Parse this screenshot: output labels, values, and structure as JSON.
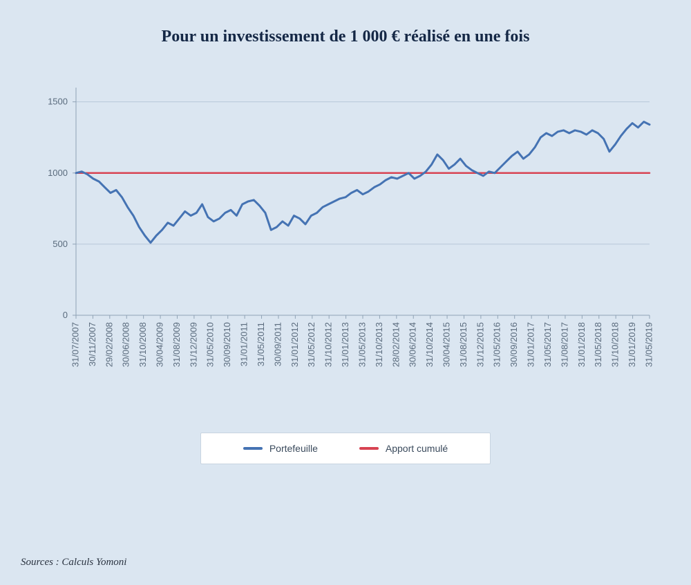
{
  "title": {
    "text": "Pour un investissement de 1 000 € réalisé en une fois",
    "fontsize": 24,
    "color": "#152846"
  },
  "chart": {
    "type": "line",
    "background_color": "#dbe6f1",
    "grid_color": "#b8c7d8",
    "axis_color": "#8fa2b5",
    "ylim": [
      0,
      1600
    ],
    "yticks": [
      0,
      500,
      1000,
      1500
    ],
    "xlabels": [
      "31/07/2007",
      "30/11/2007",
      "29/02/2008",
      "30/06/2008",
      "31/10/2008",
      "30/04/2009",
      "31/08/2009",
      "31/12/2009",
      "31/05/2010",
      "30/09/2010",
      "31/01/2011",
      "31/05/2011",
      "30/09/2011",
      "31/01/2012",
      "31/05/2012",
      "31/10/2012",
      "31/01/2013",
      "31/05/2013",
      "31/10/2013",
      "28/02/2014",
      "30/06/2014",
      "31/10/2014",
      "30/04/2015",
      "31/08/2015",
      "31/12/2015",
      "31/05/2016",
      "30/09/2016",
      "31/01/2017",
      "31/05/2017",
      "31/08/2017",
      "31/01/2018",
      "31/05/2018",
      "31/10/2018",
      "31/01/2019",
      "31/05/2019"
    ],
    "series": {
      "portefeuille": {
        "label": "Portefeuille",
        "color": "#4573b3",
        "line_width": 3,
        "values": [
          1000,
          1010,
          990,
          960,
          940,
          900,
          860,
          880,
          830,
          760,
          700,
          620,
          560,
          510,
          560,
          600,
          650,
          630,
          680,
          730,
          700,
          720,
          780,
          690,
          660,
          680,
          720,
          740,
          700,
          780,
          800,
          810,
          770,
          720,
          600,
          620,
          660,
          630,
          700,
          680,
          640,
          700,
          720,
          760,
          780,
          800,
          820,
          830,
          860,
          880,
          850,
          870,
          900,
          920,
          950,
          970,
          960,
          980,
          1000,
          960,
          980,
          1010,
          1060,
          1130,
          1090,
          1030,
          1060,
          1100,
          1050,
          1020,
          1000,
          980,
          1010,
          1000,
          1040,
          1080,
          1120,
          1150,
          1100,
          1130,
          1180,
          1250,
          1280,
          1260,
          1290,
          1300,
          1280,
          1300,
          1290,
          1270,
          1300,
          1280,
          1240,
          1150,
          1200,
          1260,
          1310,
          1350,
          1320,
          1360,
          1340
        ]
      },
      "apport": {
        "label": "Apport cumulé",
        "color": "#d84352",
        "line_width": 2.5,
        "constant_value": 1000
      }
    }
  },
  "legend": {
    "items": [
      {
        "key": "portefeuille",
        "label": "Portefeuille",
        "color": "#4573b3"
      },
      {
        "key": "apport",
        "label": "Apport cumulé",
        "color": "#d84352"
      }
    ],
    "background": "#ffffff",
    "border": "#c8d4e0"
  },
  "source": "Sources : Calculs Yomoni"
}
